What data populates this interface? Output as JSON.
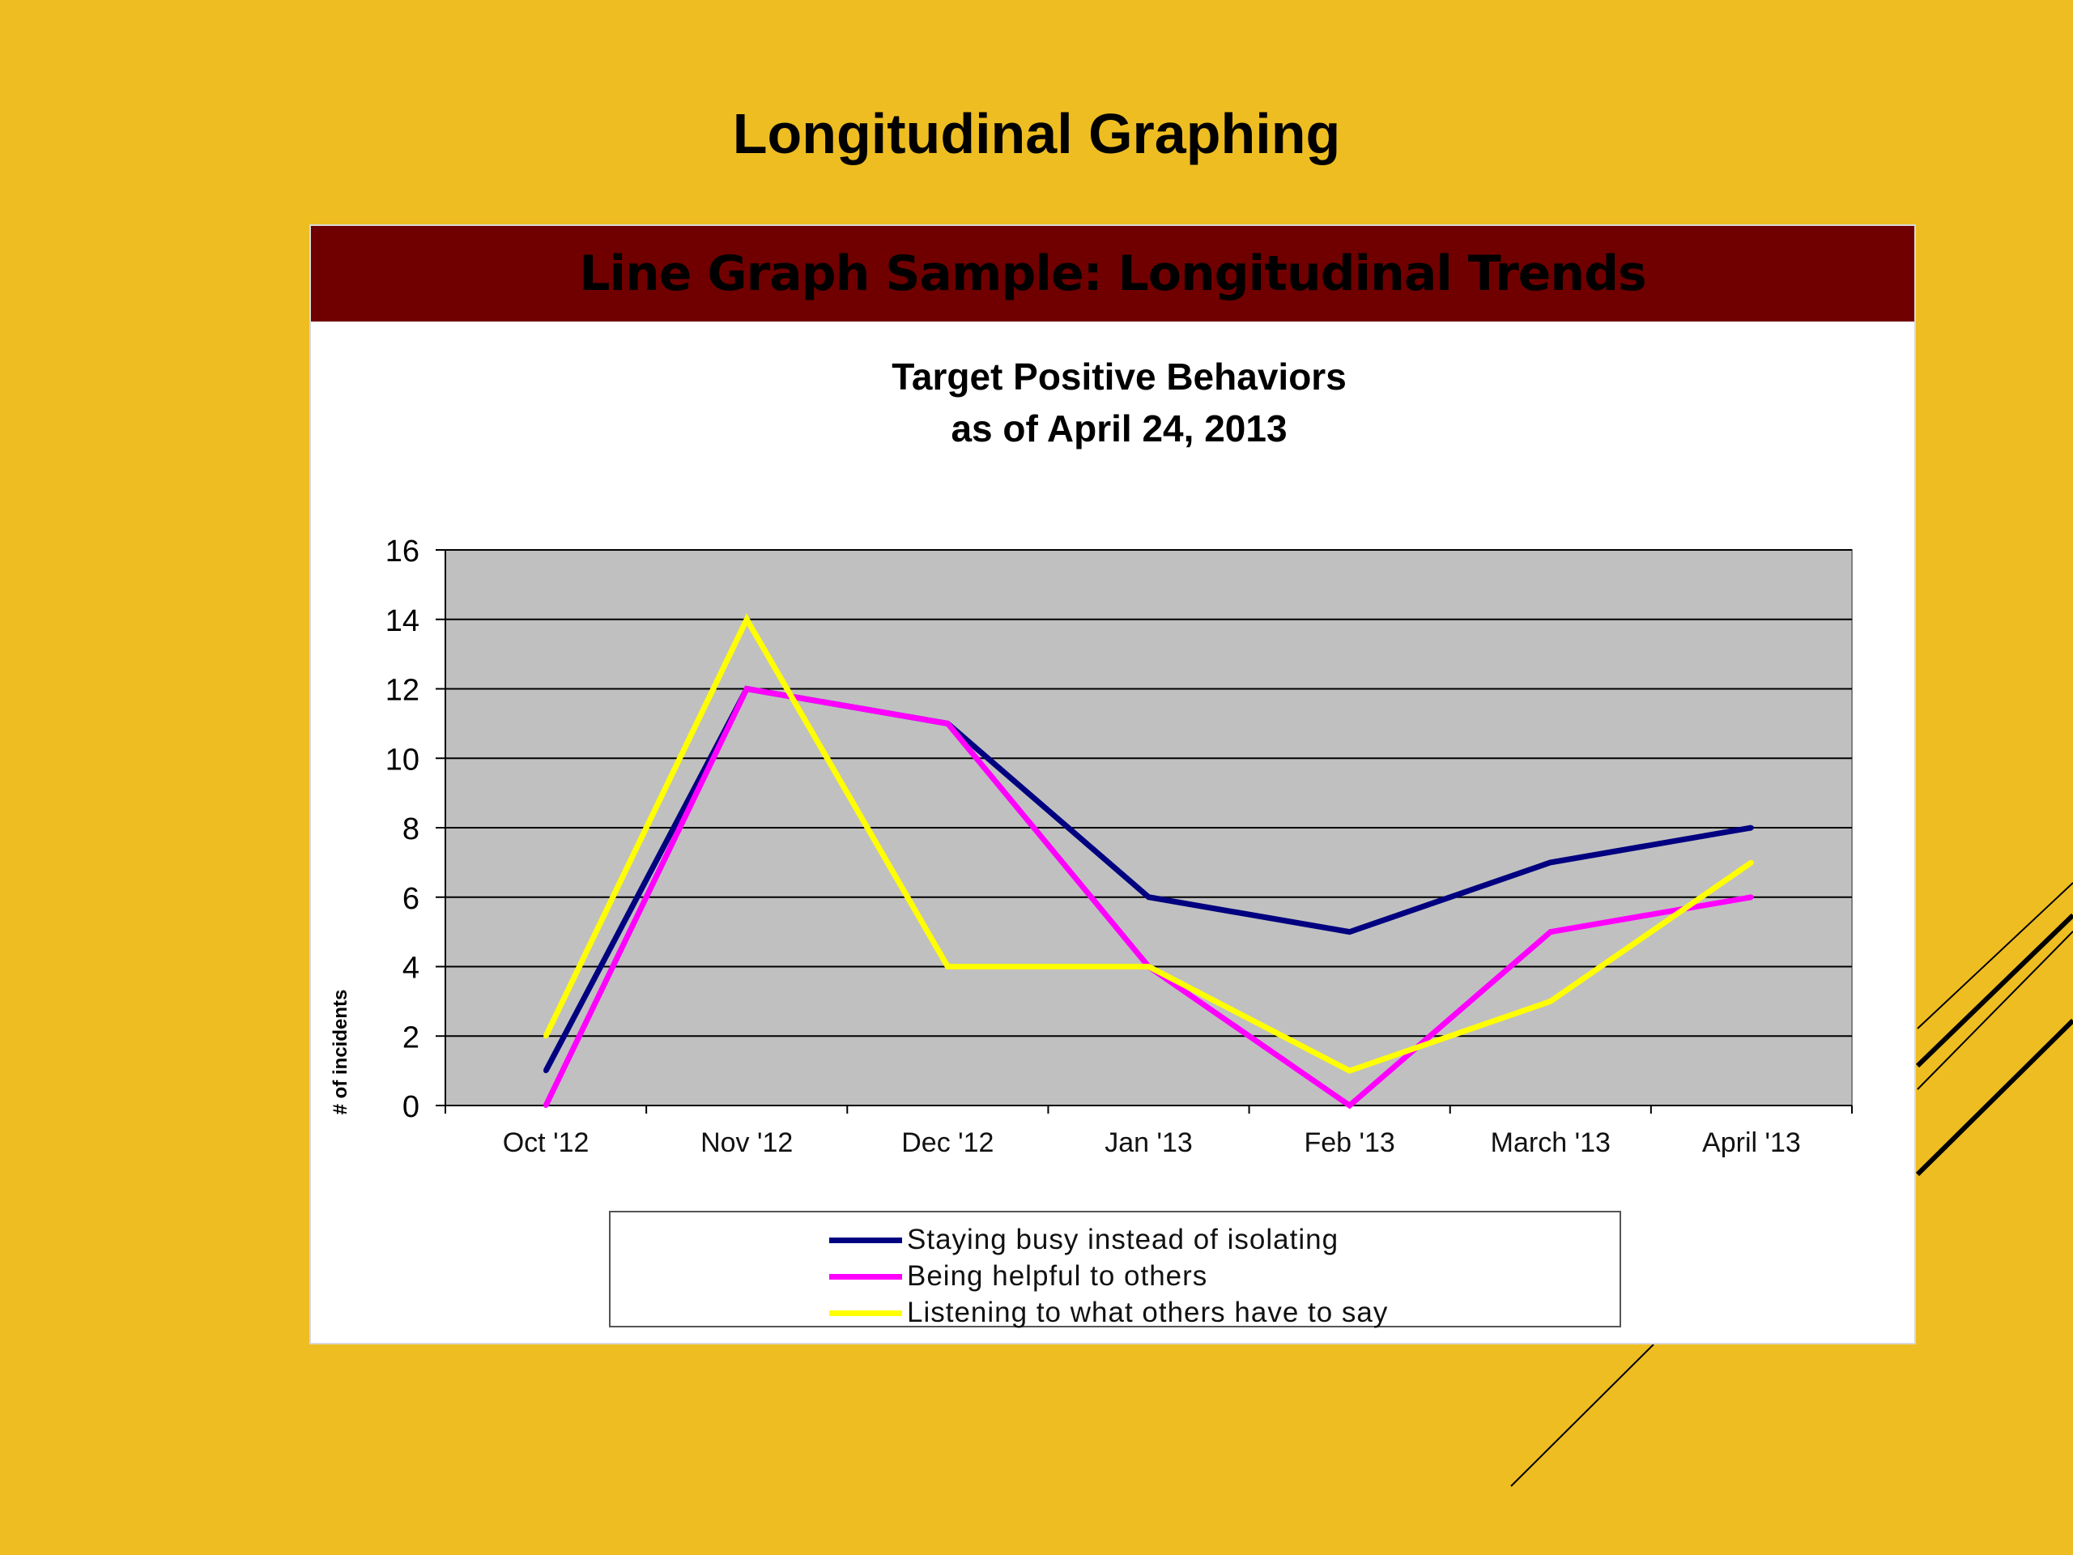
{
  "slide": {
    "title": "Longitudinal Graphing",
    "background_color": "#EEBD22",
    "banner_color": "#700000"
  },
  "banner": {
    "text": "Line Graph Sample: Longitudinal Trends"
  },
  "chart_data": {
    "type": "line",
    "title_line1": "Target Positive Behaviors",
    "title_line2": "as of April 24, 2013",
    "ylabel": "# of incidents",
    "xlabel": "",
    "categories": [
      "Oct '12",
      "Nov '12",
      "Dec '12",
      "Jan '13",
      "Feb '13",
      "March '13",
      "April '13"
    ],
    "ylim": [
      0,
      16
    ],
    "yticks": [
      0,
      2,
      4,
      6,
      8,
      10,
      12,
      14,
      16
    ],
    "grid": true,
    "plot_background": "#C0C0C0",
    "legend_position": "bottom",
    "series": [
      {
        "name": "Staying busy instead of isolating",
        "color": "#000080",
        "values": [
          1,
          12,
          11,
          6,
          5,
          7,
          8
        ]
      },
      {
        "name": "Being helpful to others",
        "color": "#FF00FF",
        "values": [
          0,
          12,
          11,
          4,
          0,
          5,
          6
        ]
      },
      {
        "name": "Listening to what others have to say",
        "color": "#FFFF00",
        "values": [
          2,
          14,
          4,
          4,
          1,
          3,
          7
        ]
      }
    ]
  }
}
